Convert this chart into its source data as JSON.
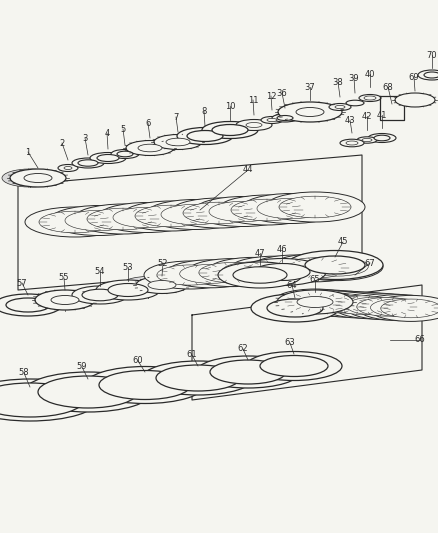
{
  "bg_color": "#f5f5f0",
  "line_color": "#2a2a2a",
  "figsize": [
    4.39,
    5.33
  ],
  "dpi": 100,
  "label_fontsize": 6.0
}
